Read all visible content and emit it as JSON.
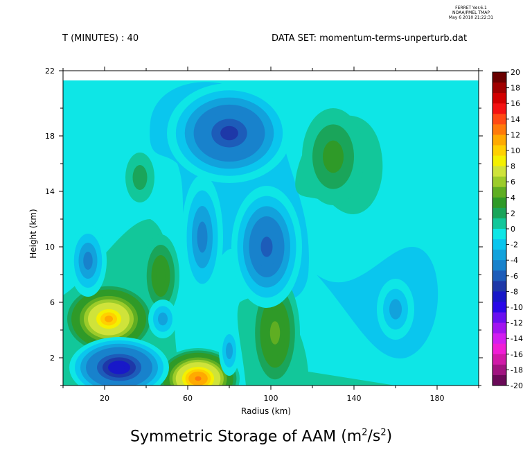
{
  "stamp": {
    "line1": "FERRET Ver.6.1",
    "line2": "NOAA/PMEL TMAP",
    "line3": "May 6 2010 21:22:31"
  },
  "header": {
    "time_label": "T (MINUTES) : 40",
    "dataset_label": "DATA SET: momentum-terms-unperturb.dat"
  },
  "chart_data": {
    "type": "heatmap",
    "title": "Symmetric Storage of AAM",
    "title_units_base": "(m",
    "title_units_exp1": "2",
    "title_units_mid": "/s",
    "title_units_exp2": "2",
    "title_units_end": ")",
    "xlabel": "Radius (km)",
    "ylabel": "Height (km)",
    "xlim": [
      0,
      200
    ],
    "ylim": [
      0,
      22
    ],
    "xticks": [
      20,
      60,
      100,
      140,
      180
    ],
    "yticks": [
      2,
      6,
      10,
      14,
      18,
      22
    ],
    "colorbar": {
      "levels": [
        20,
        18,
        16,
        14,
        12,
        10,
        8,
        6,
        4,
        2,
        0,
        -2,
        -4,
        -6,
        -8,
        -10,
        -12,
        -14,
        -16,
        -18,
        -20
      ],
      "colors": [
        "#6a0000",
        "#a00000",
        "#d20000",
        "#f41212",
        "#ff4a14",
        "#ff7a0a",
        "#ffaa00",
        "#ffd000",
        "#f4f000",
        "#cfe33a",
        "#9ccc2a",
        "#5fae22",
        "#2f9a28",
        "#1aa55a",
        "#12c79a",
        "#0ee6e6",
        "#0ac6ee",
        "#12a2dc",
        "#1882cc",
        "#1d5cb9",
        "#1e38a8",
        "#1818c8",
        "#2a08e8",
        "#6a0ff0",
        "#a214f0",
        "#d21ef0",
        "#f01ed6",
        "#d01aa8",
        "#a01480",
        "#6a0a58"
      ]
    },
    "features": [
      {
        "type": "max",
        "x": 22,
        "y": 4.8,
        "value": 11
      },
      {
        "type": "max",
        "x": 65,
        "y": 0.5,
        "value": 13
      },
      {
        "type": "max",
        "x": 102,
        "y": 3.8,
        "value": 5
      },
      {
        "type": "max",
        "x": 47,
        "y": 7.9,
        "value": 4
      },
      {
        "type": "max",
        "x": 130,
        "y": 16.5,
        "value": 3
      },
      {
        "type": "max",
        "x": 37,
        "y": 15,
        "value": 1.5
      },
      {
        "type": "min",
        "x": 27,
        "y": 1.3,
        "value": -9
      },
      {
        "type": "min",
        "x": 80,
        "y": 18.2,
        "value": -7
      },
      {
        "type": "min",
        "x": 98,
        "y": 10,
        "value": -6
      },
      {
        "type": "min",
        "x": 67,
        "y": 10.7,
        "value": -4
      },
      {
        "type": "min",
        "x": 12,
        "y": 9,
        "value": -4
      },
      {
        "type": "min",
        "x": 48,
        "y": 4.8,
        "value": -3
      },
      {
        "type": "min",
        "x": 160,
        "y": 5.5,
        "value": -2.5
      },
      {
        "type": "min",
        "x": 80,
        "y": 2.5,
        "value": -3
      }
    ]
  }
}
